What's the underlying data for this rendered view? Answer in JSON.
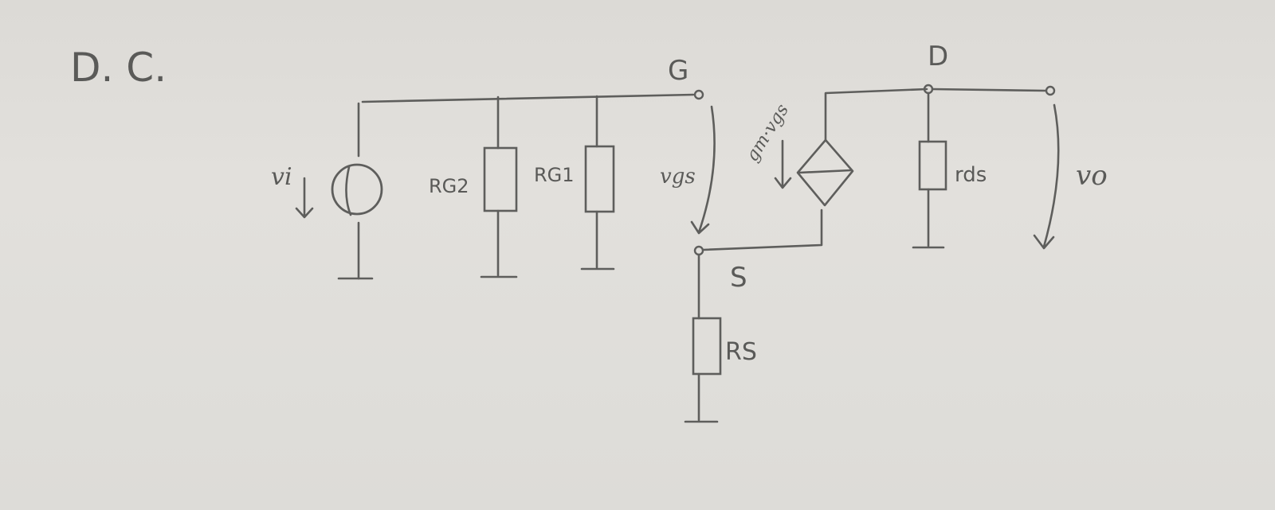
{
  "title": "D. C.",
  "nodes": {
    "gate": "G",
    "drain": "D",
    "source": "S"
  },
  "components": {
    "source_label": "vi",
    "rg2_label": "RG2",
    "rg1_label": "RG1",
    "vgs_label": "vgs",
    "dependent_source_label": "gm·vgs",
    "rds_label": "rds",
    "rs_label": "RS",
    "vo_label": "vo"
  },
  "colors": {
    "paper": "#dfddd9",
    "pencil": "#5e5e5c"
  }
}
